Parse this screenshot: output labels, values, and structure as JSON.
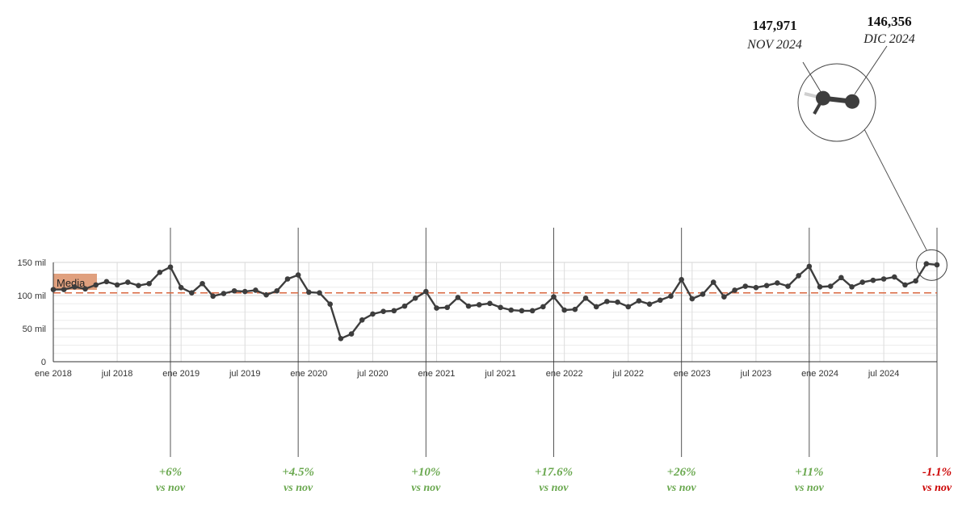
{
  "chart_data": {
    "type": "line",
    "y_ticks": [
      {
        "value": 0,
        "label": "0"
      },
      {
        "value": 50,
        "label": "50 mil"
      },
      {
        "value": 100,
        "label": "100 mil"
      },
      {
        "value": 150,
        "label": "150 mil"
      }
    ],
    "ylim": [
      0,
      150
    ],
    "grid": true,
    "x_ticks": [
      {
        "index": 0,
        "label": "ene 2018"
      },
      {
        "index": 6,
        "label": "jul 2018"
      },
      {
        "index": 12,
        "label": "ene 2019"
      },
      {
        "index": 18,
        "label": "jul 2019"
      },
      {
        "index": 24,
        "label": "ene 2020"
      },
      {
        "index": 30,
        "label": "jul 2020"
      },
      {
        "index": 36,
        "label": "ene 2021"
      },
      {
        "index": 42,
        "label": "jul 2021"
      },
      {
        "index": 48,
        "label": "ene 2022"
      },
      {
        "index": 54,
        "label": "jul 2022"
      },
      {
        "index": 60,
        "label": "ene 2023"
      },
      {
        "index": 66,
        "label": "jul 2023"
      },
      {
        "index": 72,
        "label": "ene 2024"
      },
      {
        "index": 78,
        "label": "jul 2024"
      }
    ],
    "series": [
      {
        "color": "#3d3d3d",
        "values": [
          109,
          109,
          113,
          110,
          116,
          121,
          116,
          120,
          115,
          118,
          135,
          143,
          112,
          104,
          118,
          99,
          103,
          107,
          106,
          108,
          101,
          107,
          125,
          131,
          105,
          104,
          87,
          35,
          42,
          63,
          72,
          76,
          77,
          84,
          96,
          106,
          81,
          82,
          97,
          84,
          86,
          88,
          82,
          78,
          77,
          77,
          83,
          98,
          78,
          79,
          96,
          83,
          91,
          90,
          83,
          92,
          87,
          93,
          99,
          124,
          95,
          102,
          120,
          98,
          108,
          114,
          112,
          115,
          119,
          114,
          130,
          144,
          113,
          114,
          127,
          113,
          120,
          123,
          125,
          128,
          116,
          122,
          147.971,
          146.356
        ]
      }
    ],
    "reference_line": {
      "label": "Media",
      "value": 104,
      "color": "#d9663e",
      "label_bg": "#e0a07e"
    },
    "highlight": [
      {
        "value": "147,971",
        "label": "NOV 2024"
      },
      {
        "value": "146,356",
        "label": "DIC 2024"
      }
    ],
    "annotations": [
      {
        "index": 11,
        "value": "+6%",
        "sub": "vs nov",
        "color": "#6aa84f"
      },
      {
        "index": 23,
        "value": "+4.5%",
        "sub": "vs nov",
        "color": "#6aa84f"
      },
      {
        "index": 35,
        "value": "+10%",
        "sub": "vs nov",
        "color": "#6aa84f"
      },
      {
        "index": 47,
        "value": "+17.6%",
        "sub": "vs nov",
        "color": "#6aa84f"
      },
      {
        "index": 59,
        "value": "+26%",
        "sub": "vs nov",
        "color": "#6aa84f"
      },
      {
        "index": 71,
        "value": "+11%",
        "sub": "vs nov",
        "color": "#6aa84f"
      },
      {
        "index": 83,
        "value": "-1.1%",
        "sub": "vs nov",
        "color": "#cc0000"
      }
    ]
  }
}
